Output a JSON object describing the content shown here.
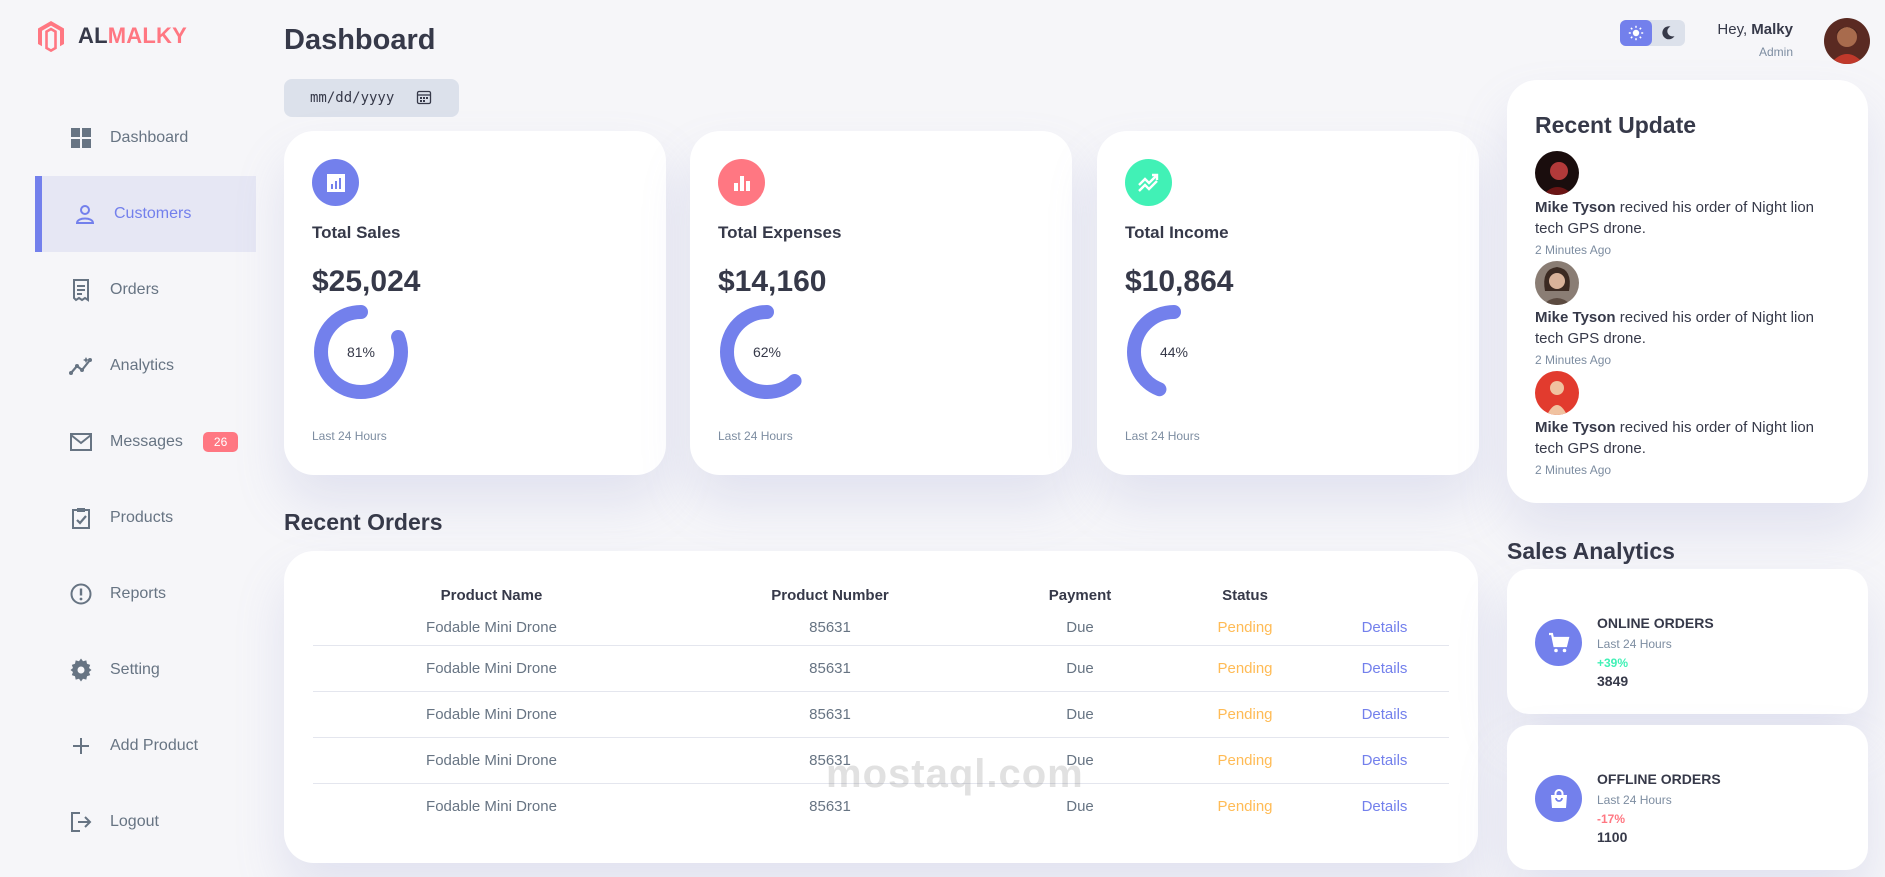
{
  "brand": {
    "part1": "AL",
    "part2": "MALKY",
    "accent": "#ff7782",
    "primary": "#7380ec"
  },
  "sidebar": {
    "items": [
      {
        "label": "Dashboard",
        "icon": "grid-icon"
      },
      {
        "label": "Customers",
        "icon": "person-icon",
        "active": true
      },
      {
        "label": "Orders",
        "icon": "receipt-icon"
      },
      {
        "label": "Analytics",
        "icon": "insights-icon"
      },
      {
        "label": "Messages",
        "icon": "mail-icon",
        "badge": "26"
      },
      {
        "label": "Products",
        "icon": "inventory-icon"
      },
      {
        "label": "Reports",
        "icon": "report-icon"
      },
      {
        "label": "Setting",
        "icon": "gear-icon"
      },
      {
        "label": "Add Product",
        "icon": "plus-icon"
      },
      {
        "label": "Logout",
        "icon": "logout-icon"
      }
    ]
  },
  "header": {
    "title": "Dashboard",
    "date_placeholder": "mm/dd/yyyy",
    "greeting": "Hey,",
    "user_name": "Malky",
    "user_role": "Admin"
  },
  "insights": [
    {
      "label": "Total Sales",
      "value": "$25,024",
      "percent": "81%",
      "fraction": 0.81,
      "footer": "Last 24 Hours",
      "icon": "analytics-icon",
      "color": "#7380ec"
    },
    {
      "label": "Total Expenses",
      "value": "$14,160",
      "percent": "62%",
      "fraction": 0.62,
      "footer": "Last 24 Hours",
      "icon": "bar-chart-icon",
      "color": "#ff7782"
    },
    {
      "label": "Total Income",
      "value": "$10,864",
      "percent": "44%",
      "fraction": 0.44,
      "footer": "Last 24 Hours",
      "icon": "stocks-icon",
      "color": "#41f1b6"
    }
  ],
  "recent_orders": {
    "title": "Recent Orders",
    "columns": [
      "Product Name",
      "Product Number",
      "Payment",
      "Status",
      ""
    ],
    "rows": [
      {
        "name": "Fodable Mini Drone",
        "number": "85631",
        "payment": "Due",
        "status": "Pending",
        "action": "Details"
      },
      {
        "name": "Fodable Mini Drone",
        "number": "85631",
        "payment": "Due",
        "status": "Pending",
        "action": "Details"
      },
      {
        "name": "Fodable Mini Drone",
        "number": "85631",
        "payment": "Due",
        "status": "Pending",
        "action": "Details"
      },
      {
        "name": "Fodable Mini Drone",
        "number": "85631",
        "payment": "Due",
        "status": "Pending",
        "action": "Details"
      },
      {
        "name": "Fodable Mini Drone",
        "number": "85631",
        "payment": "Due",
        "status": "Pending",
        "action": "Details"
      }
    ]
  },
  "recent_updates": {
    "title": "Recent Update",
    "items": [
      {
        "name": "Mike Tyson",
        "text": " recived his order of Night lion tech GPS drone.",
        "time": "2 Minutes Ago"
      },
      {
        "name": "Mike Tyson",
        "text": " recived his order of Night lion tech GPS drone.",
        "time": "2 Minutes Ago"
      },
      {
        "name": "Mike Tyson",
        "text": " recived his order of Night lion tech GPS drone.",
        "time": "2 Minutes Ago"
      }
    ]
  },
  "sales_analytics": {
    "title": "Sales Analytics",
    "items": [
      {
        "title": "ONLINE ORDERS",
        "sub": "Last 24 Hours",
        "pct": "+39%",
        "value": "3849",
        "pct_color": "#41f1b6",
        "icon": "cart-icon"
      },
      {
        "title": "OFFLINE ORDERS",
        "sub": "Last 24 Hours",
        "pct": "-17%",
        "value": "1100",
        "pct_color": "#ff7782",
        "icon": "shopping-bag-icon"
      }
    ]
  },
  "watermark": "mostaql.com"
}
